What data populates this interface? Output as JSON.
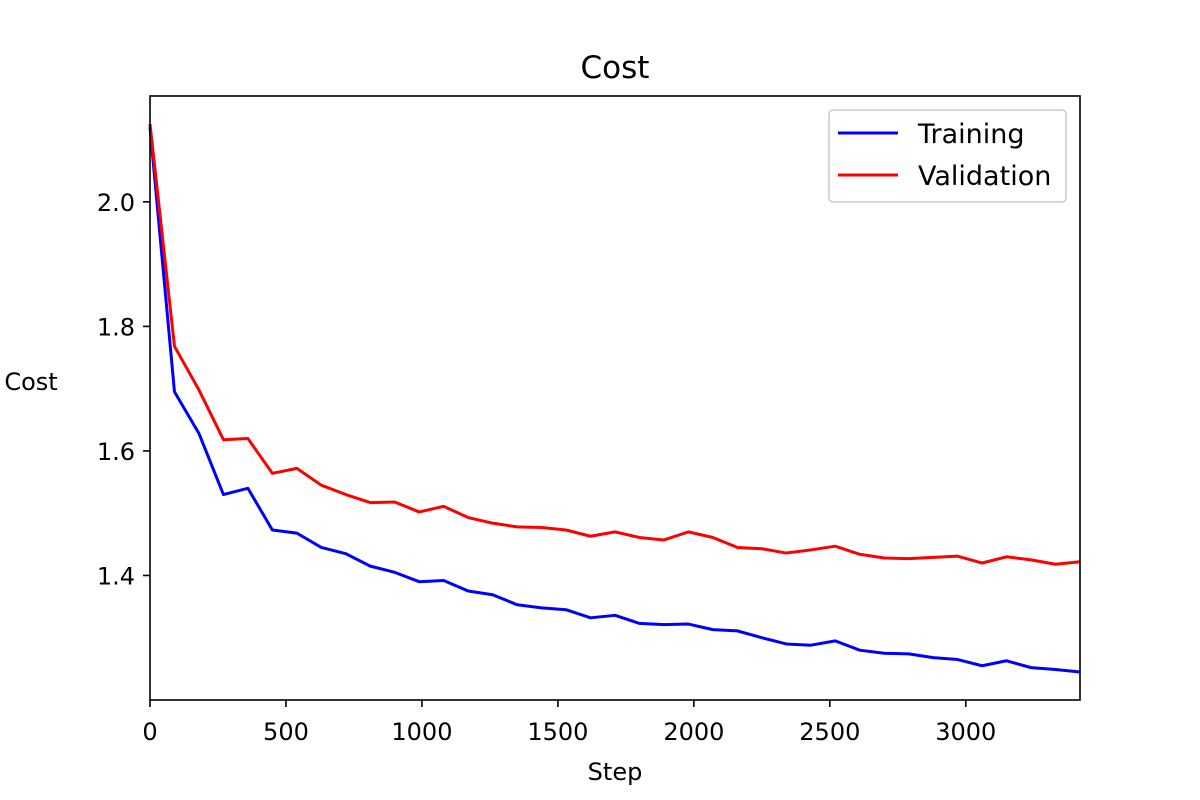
{
  "chart_data": {
    "type": "line",
    "title": "Cost",
    "xlabel": "Step",
    "ylabel": "Cost",
    "xlim": [
      0,
      3420
    ],
    "ylim": [
      1.2,
      2.17
    ],
    "xticks": [
      0,
      500,
      1000,
      1500,
      2000,
      2500,
      3000
    ],
    "xtick_labels": [
      "0",
      "500",
      "1000",
      "1500",
      "2000",
      "2500",
      "3000"
    ],
    "yticks": [
      1.4,
      1.6,
      1.8,
      2.0
    ],
    "ytick_labels": [
      "1.4",
      "1.6",
      "1.8",
      "2.0"
    ],
    "grid": false,
    "legend_position": "top-right",
    "x": [
      0,
      90,
      180,
      270,
      360,
      450,
      540,
      630,
      720,
      810,
      900,
      990,
      1080,
      1170,
      1260,
      1350,
      1440,
      1530,
      1620,
      1710,
      1800,
      1890,
      1980,
      2070,
      2160,
      2250,
      2340,
      2430,
      2520,
      2610,
      2700,
      2790,
      2880,
      2970,
      3060,
      3150,
      3240,
      3330,
      3420
    ],
    "series": [
      {
        "name": "Training",
        "color": "#0000ff",
        "values": [
          2.12,
          1.695,
          1.628,
          1.53,
          1.54,
          1.473,
          1.468,
          1.445,
          1.435,
          1.415,
          1.405,
          1.39,
          1.392,
          1.375,
          1.369,
          1.353,
          1.348,
          1.345,
          1.332,
          1.336,
          1.323,
          1.321,
          1.322,
          1.313,
          1.311,
          1.3,
          1.29,
          1.288,
          1.295,
          1.28,
          1.275,
          1.274,
          1.268,
          1.265,
          1.255,
          1.263,
          1.252,
          1.249,
          1.245
        ]
      },
      {
        "name": "Validation",
        "color": "#ff0000",
        "values": [
          2.125,
          1.768,
          1.698,
          1.618,
          1.62,
          1.564,
          1.572,
          1.545,
          1.53,
          1.517,
          1.518,
          1.502,
          1.511,
          1.493,
          1.484,
          1.478,
          1.477,
          1.473,
          1.463,
          1.47,
          1.461,
          1.457,
          1.47,
          1.461,
          1.445,
          1.443,
          1.436,
          1.441,
          1.447,
          1.434,
          1.428,
          1.427,
          1.429,
          1.431,
          1.42,
          1.43,
          1.425,
          1.418,
          1.422
        ]
      }
    ]
  }
}
